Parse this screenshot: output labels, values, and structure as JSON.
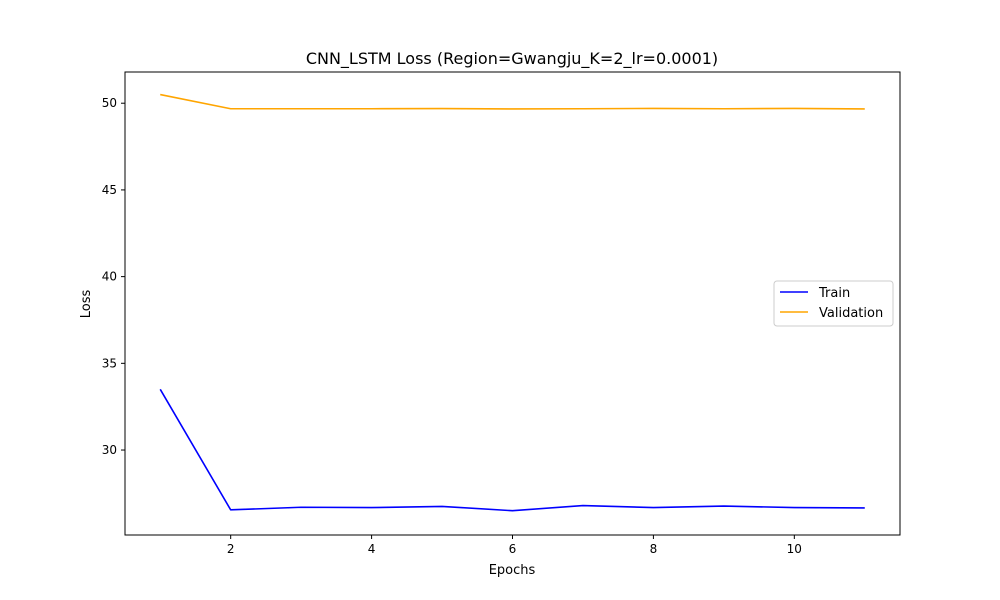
{
  "chart_data": {
    "type": "line",
    "title": "CNN_LSTM Loss (Region=Gwangju_K=2_lr=0.0001)",
    "xlabel": "Epochs",
    "ylabel": "Loss",
    "x": [
      1,
      2,
      3,
      4,
      5,
      6,
      7,
      8,
      9,
      10,
      11
    ],
    "xlim": [
      0.5,
      11.5
    ],
    "ylim": [
      25.1,
      51.8
    ],
    "xticks": [
      2,
      4,
      6,
      8,
      10
    ],
    "yticks": [
      30,
      35,
      40,
      45,
      50
    ],
    "grid": false,
    "legend": "center-right",
    "series": [
      {
        "name": "Train",
        "color": "#0000ff",
        "values": [
          33.5,
          26.55,
          26.7,
          26.68,
          26.75,
          26.5,
          26.8,
          26.68,
          26.77,
          26.68,
          26.66
        ]
      },
      {
        "name": "Validation",
        "color": "#ffa500",
        "values": [
          50.5,
          49.68,
          49.68,
          49.68,
          49.69,
          49.67,
          49.68,
          49.7,
          49.68,
          49.7,
          49.67
        ]
      }
    ]
  }
}
